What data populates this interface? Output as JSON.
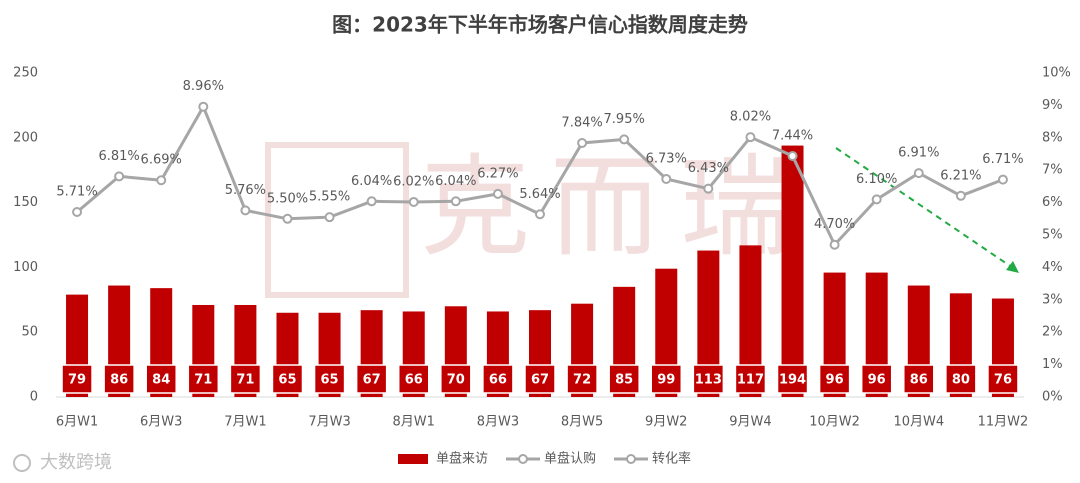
{
  "chart_data": {
    "type": "bar",
    "title": "图：2023年下半年市场客户信心指数周度走势",
    "watermark": "克而瑞",
    "brand": "大数跨境",
    "categories": [
      "6月W1",
      null,
      "6月W3",
      null,
      "7月W1",
      null,
      "7月W3",
      null,
      "8月W1",
      null,
      "8月W3",
      null,
      "8月W5",
      null,
      "9月W2",
      null,
      "9月W4",
      null,
      "10月W2",
      null,
      "10月W4",
      null,
      "11月W2"
    ],
    "series": [
      {
        "name": "单盘来访",
        "color": "#c00000",
        "values": [
          79,
          86,
          84,
          71,
          71,
          65,
          65,
          67,
          66,
          70,
          66,
          67,
          72,
          85,
          99,
          113,
          117,
          194,
          96,
          96,
          86,
          80,
          76
        ]
      },
      {
        "name": "单盘认购",
        "color": "#a6a6a6",
        "type": "line",
        "axis": "y2",
        "values": [
          null,
          null,
          null,
          null,
          null,
          null,
          null,
          null,
          null,
          null,
          null,
          null,
          null,
          null,
          null,
          null,
          null,
          null,
          null,
          null,
          null,
          null,
          null
        ]
      },
      {
        "name": "转化率",
        "color": "#a6a6a6",
        "type": "line",
        "axis": "y2",
        "values": [
          5.71,
          6.81,
          6.69,
          8.96,
          5.76,
          5.5,
          5.55,
          6.04,
          6.02,
          6.04,
          6.27,
          5.64,
          7.84,
          7.95,
          6.73,
          6.43,
          8.02,
          7.44,
          4.7,
          6.1,
          6.91,
          6.21,
          6.71
        ],
        "value_labels": [
          "5.71%",
          "6.81%",
          "6.69%",
          "8.96%",
          "5.76%",
          "5.50%",
          "5.55%",
          "6.04%",
          "6.02%",
          "6.04%",
          "6.27%",
          "5.64%",
          "7.84%",
          "7.95%",
          "6.73%",
          "6.43%",
          "8.02%",
          "7.44%",
          "4.70%",
          "6.10%",
          "6.91%",
          "6.21%",
          "6.71%"
        ]
      }
    ],
    "ylim": [
      0,
      250
    ],
    "yticks": [
      0,
      50,
      100,
      150,
      200,
      250
    ],
    "y2lim": [
      0,
      10
    ],
    "y2ticks": [
      {
        "value": 0,
        "label": "0%"
      },
      {
        "value": 1,
        "label": "1%"
      },
      {
        "value": 2,
        "label": "2%"
      },
      {
        "value": 3,
        "label": "3%"
      },
      {
        "value": 4,
        "label": "4%"
      },
      {
        "value": 5,
        "label": "5%"
      },
      {
        "value": 6,
        "label": "6%"
      },
      {
        "value": 7,
        "label": "7%"
      },
      {
        "value": 8,
        "label": "8%"
      },
      {
        "value": 9,
        "label": "9%"
      },
      {
        "value": 10,
        "label": "10%"
      }
    ],
    "legend": "bottom"
  }
}
